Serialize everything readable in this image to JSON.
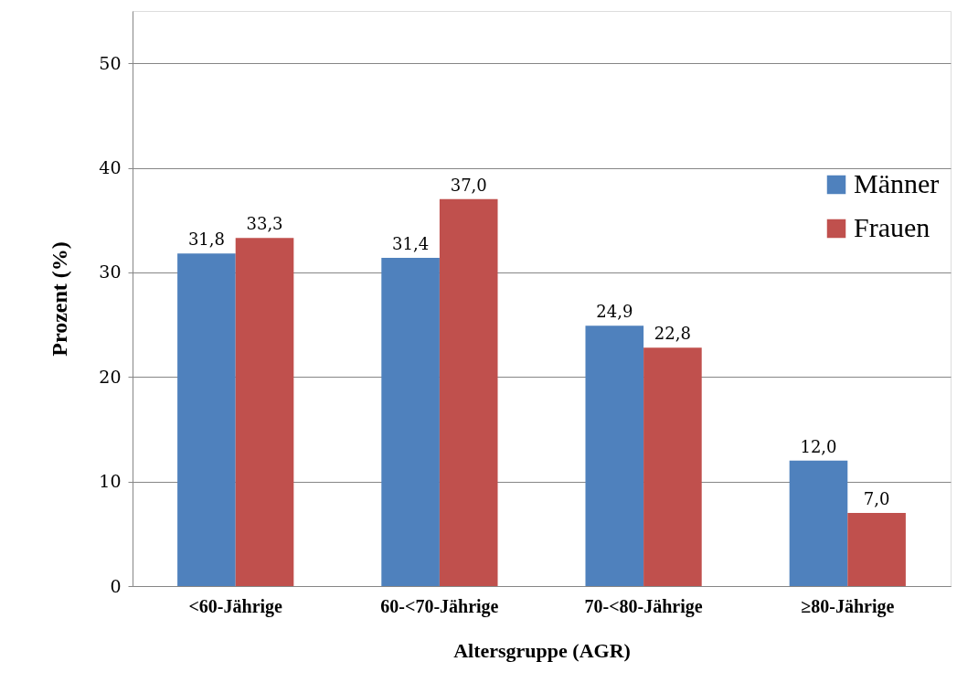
{
  "chart_data": {
    "type": "bar",
    "xlabel": "Altersgruppe (AGR)",
    "ylabel": "Prozent (%)",
    "categories": [
      "<60-Jährige",
      "60-<70-Jährige",
      "70-<80-Jährige",
      "≥80-Jährige"
    ],
    "series": [
      {
        "name": "Männer",
        "color": "#4f81bd",
        "values": [
          31.8,
          31.4,
          24.9,
          12.0
        ],
        "value_labels": [
          "31,8",
          "31,4",
          "24,9",
          "12,0"
        ]
      },
      {
        "name": "Frauen",
        "color": "#c0504d",
        "values": [
          33.3,
          37.0,
          22.8,
          7.0
        ],
        "value_labels": [
          "33,3",
          "37,0",
          "22,8",
          "7,0"
        ]
      }
    ],
    "ylim": [
      0,
      55
    ],
    "yticks": [
      0,
      10,
      20,
      30,
      40,
      50
    ],
    "grid": "y",
    "legend": "right"
  }
}
